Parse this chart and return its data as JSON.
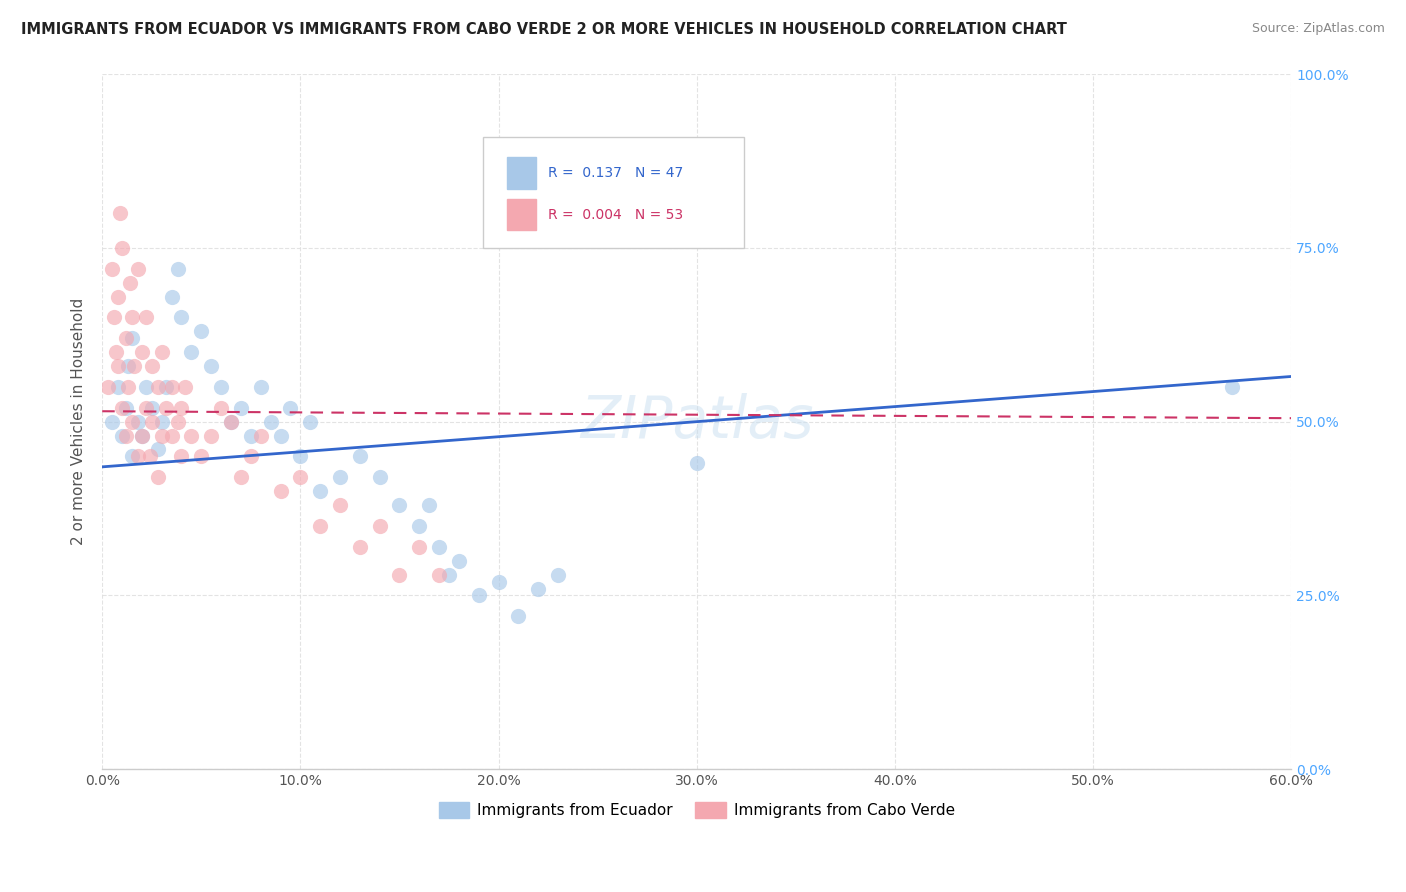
{
  "title": "IMMIGRANTS FROM ECUADOR VS IMMIGRANTS FROM CABO VERDE 2 OR MORE VEHICLES IN HOUSEHOLD CORRELATION CHART",
  "source": "Source: ZipAtlas.com",
  "ylabel": "2 or more Vehicles in Household",
  "legend_label1": "Immigrants from Ecuador",
  "legend_label2": "Immigrants from Cabo Verde",
  "r1": 0.137,
  "n1": 47,
  "r2": 0.004,
  "n2": 53,
  "color1": "#a8c8e8",
  "color2": "#f4a8b0",
  "trendline_color1": "#3366cc",
  "trendline_color2": "#cc3366",
  "xlim": [
    0.0,
    0.6
  ],
  "ylim": [
    0.0,
    1.0
  ],
  "xticks": [
    0.0,
    0.1,
    0.2,
    0.3,
    0.4,
    0.5,
    0.6
  ],
  "yticks": [
    0.0,
    0.25,
    0.5,
    0.75,
    1.0
  ],
  "xtick_labels": [
    "0.0%",
    "10.0%",
    "20.0%",
    "30.0%",
    "40.0%",
    "50.0%",
    "60.0%"
  ],
  "ytick_labels": [
    "0.0%",
    "25.0%",
    "50.0%",
    "75.0%",
    "100.0%"
  ],
  "background_color": "#ffffff",
  "grid_color": "#e0e0e0",
  "ecuador_x": [
    0.005,
    0.008,
    0.01,
    0.012,
    0.013,
    0.015,
    0.015,
    0.018,
    0.02,
    0.022,
    0.025,
    0.028,
    0.03,
    0.032,
    0.035,
    0.038,
    0.04,
    0.045,
    0.05,
    0.055,
    0.06,
    0.065,
    0.07,
    0.075,
    0.08,
    0.085,
    0.09,
    0.095,
    0.1,
    0.105,
    0.11,
    0.12,
    0.13,
    0.14,
    0.15,
    0.16,
    0.165,
    0.17,
    0.175,
    0.18,
    0.19,
    0.2,
    0.21,
    0.22,
    0.23,
    0.3,
    0.57
  ],
  "ecuador_y": [
    0.5,
    0.55,
    0.48,
    0.52,
    0.58,
    0.45,
    0.62,
    0.5,
    0.48,
    0.55,
    0.52,
    0.46,
    0.5,
    0.55,
    0.68,
    0.72,
    0.65,
    0.6,
    0.63,
    0.58,
    0.55,
    0.5,
    0.52,
    0.48,
    0.55,
    0.5,
    0.48,
    0.52,
    0.45,
    0.5,
    0.4,
    0.42,
    0.45,
    0.42,
    0.38,
    0.35,
    0.38,
    0.32,
    0.28,
    0.3,
    0.25,
    0.27,
    0.22,
    0.26,
    0.28,
    0.44,
    0.55
  ],
  "caboverde_x": [
    0.003,
    0.005,
    0.006,
    0.007,
    0.008,
    0.008,
    0.009,
    0.01,
    0.01,
    0.012,
    0.012,
    0.013,
    0.014,
    0.015,
    0.015,
    0.016,
    0.018,
    0.018,
    0.02,
    0.02,
    0.022,
    0.022,
    0.024,
    0.025,
    0.025,
    0.028,
    0.028,
    0.03,
    0.03,
    0.032,
    0.035,
    0.035,
    0.038,
    0.04,
    0.04,
    0.042,
    0.045,
    0.05,
    0.055,
    0.06,
    0.065,
    0.07,
    0.075,
    0.08,
    0.09,
    0.1,
    0.11,
    0.12,
    0.13,
    0.14,
    0.15,
    0.16,
    0.17
  ],
  "caboverde_y": [
    0.55,
    0.72,
    0.65,
    0.6,
    0.58,
    0.68,
    0.8,
    0.52,
    0.75,
    0.48,
    0.62,
    0.55,
    0.7,
    0.5,
    0.65,
    0.58,
    0.45,
    0.72,
    0.48,
    0.6,
    0.52,
    0.65,
    0.45,
    0.5,
    0.58,
    0.42,
    0.55,
    0.48,
    0.6,
    0.52,
    0.48,
    0.55,
    0.5,
    0.45,
    0.52,
    0.55,
    0.48,
    0.45,
    0.48,
    0.52,
    0.5,
    0.42,
    0.45,
    0.48,
    0.4,
    0.42,
    0.35,
    0.38,
    0.32,
    0.35,
    0.28,
    0.32,
    0.28
  ]
}
